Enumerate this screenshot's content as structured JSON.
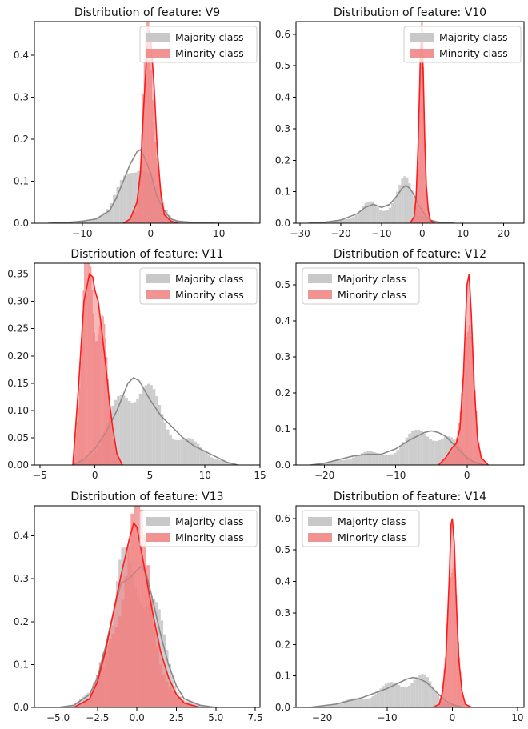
{
  "legend": {
    "majority_label": "Majority class",
    "minority_label": "Minority class"
  },
  "colors": {
    "majority_hist": "#c8c8c8",
    "majority_kde": "#888888",
    "minority_hist": "#f08080",
    "minority_kde": "#ff1a1a"
  },
  "chart_data": [
    {
      "type": "area",
      "title": "Distribution of feature: V9",
      "xlim": [
        -17,
        16
      ],
      "ylim": [
        0,
        0.48
      ],
      "xticks": [
        -10,
        0,
        10
      ],
      "yticks": [
        0.0,
        0.1,
        0.2,
        0.3,
        0.4
      ],
      "x_tick_labels": [
        "−10",
        "0",
        "10"
      ],
      "y_tick_labels": [
        "0.0",
        "0.1",
        "0.2",
        "0.3",
        "0.4"
      ],
      "series": [
        {
          "name": "Majority class",
          "x": [
            -15,
            -12,
            -10,
            -8,
            -6,
            -5,
            -4,
            -3,
            -2,
            -1.5,
            -1,
            0,
            1,
            2,
            3,
            4,
            6,
            8,
            10,
            15
          ],
          "y": [
            0,
            0.002,
            0.005,
            0.01,
            0.03,
            0.06,
            0.1,
            0.14,
            0.17,
            0.175,
            0.16,
            0.12,
            0.06,
            0.03,
            0.01,
            0.005,
            0.002,
            0.001,
            0,
            0
          ]
        },
        {
          "name": "Minority class",
          "x": [
            -4,
            -3,
            -2,
            -1.5,
            -1,
            -0.5,
            -0.2,
            0,
            0.5,
            1,
            1.5,
            2,
            3,
            4
          ],
          "y": [
            0,
            0.01,
            0.05,
            0.12,
            0.28,
            0.42,
            0.46,
            0.44,
            0.33,
            0.17,
            0.07,
            0.02,
            0.005,
            0
          ]
        }
      ]
    },
    {
      "type": "area",
      "title": "Distribution of feature: V10",
      "xlim": [
        -31,
        25
      ],
      "ylim": [
        0,
        0.64
      ],
      "xticks": [
        -30,
        -20,
        -10,
        0,
        10,
        20
      ],
      "yticks": [
        0.0,
        0.1,
        0.2,
        0.3,
        0.4,
        0.5,
        0.6
      ],
      "x_tick_labels": [
        "−30",
        "−20",
        "−10",
        "0",
        "10",
        "20"
      ],
      "y_tick_labels": [
        "0.0",
        "0.1",
        "0.2",
        "0.3",
        "0.4",
        "0.5",
        "0.6"
      ],
      "series": [
        {
          "name": "Majority class",
          "x": [
            -28,
            -24,
            -20,
            -16,
            -14,
            -12,
            -10,
            -8,
            -6,
            -5,
            -4,
            -3,
            -2,
            -1,
            0,
            1,
            2,
            4,
            8
          ],
          "y": [
            0,
            0.003,
            0.01,
            0.03,
            0.05,
            0.06,
            0.05,
            0.06,
            0.09,
            0.11,
            0.12,
            0.11,
            0.09,
            0.06,
            0.04,
            0.02,
            0.01,
            0.003,
            0
          ]
        },
        {
          "name": "Minority class",
          "x": [
            -3,
            -2,
            -1.5,
            -1,
            -0.5,
            -0.2,
            0,
            0.3,
            0.6,
            1,
            1.5,
            2,
            3
          ],
          "y": [
            0,
            0.02,
            0.08,
            0.25,
            0.5,
            0.6,
            0.58,
            0.45,
            0.28,
            0.12,
            0.04,
            0.01,
            0
          ]
        }
      ]
    },
    {
      "type": "area",
      "title": "Distribution of feature: V11",
      "xlim": [
        -5.5,
        15
      ],
      "ylim": [
        0,
        0.37
      ],
      "xticks": [
        -5,
        0,
        5,
        10,
        15
      ],
      "yticks": [
        0.0,
        0.05,
        0.1,
        0.15,
        0.2,
        0.25,
        0.3,
        0.35
      ],
      "x_tick_labels": [
        "−5",
        "0",
        "5",
        "10",
        "15"
      ],
      "y_tick_labels": [
        "0.00",
        "0.05",
        "0.10",
        "0.15",
        "0.20",
        "0.25",
        "0.30",
        "0.35"
      ],
      "series": [
        {
          "name": "Majority class",
          "x": [
            -2,
            -1,
            0,
            1,
            2,
            3,
            3.5,
            4,
            5,
            6,
            7,
            8,
            9,
            10,
            11,
            12,
            13
          ],
          "y": [
            0,
            0.01,
            0.03,
            0.06,
            0.1,
            0.15,
            0.16,
            0.155,
            0.12,
            0.09,
            0.07,
            0.05,
            0.035,
            0.025,
            0.015,
            0.005,
            0
          ]
        },
        {
          "name": "Minority class",
          "x": [
            -2,
            -1.5,
            -1,
            -0.5,
            -0.2,
            0,
            0.3,
            0.6,
            1,
            1.3,
            1.6,
            2,
            2.5
          ],
          "y": [
            0,
            0.14,
            0.3,
            0.35,
            0.345,
            0.32,
            0.3,
            0.25,
            0.18,
            0.12,
            0.07,
            0.02,
            0
          ]
        }
      ]
    },
    {
      "type": "area",
      "title": "Distribution of feature: V12",
      "xlim": [
        -24,
        8
      ],
      "ylim": [
        0,
        0.56
      ],
      "xticks": [
        -20,
        -10,
        0
      ],
      "yticks": [
        0.0,
        0.1,
        0.2,
        0.3,
        0.4,
        0.5
      ],
      "x_tick_labels": [
        "−20",
        "−10",
        "0"
      ],
      "y_tick_labels": [
        "0.0",
        "0.1",
        "0.2",
        "0.3",
        "0.4",
        "0.5"
      ],
      "series": [
        {
          "name": "Majority class",
          "x": [
            -22,
            -20,
            -18,
            -16,
            -14,
            -12,
            -10,
            -8,
            -6,
            -5,
            -4,
            -3,
            -2,
            -1,
            0,
            1,
            2,
            3
          ],
          "y": [
            0,
            0.005,
            0.015,
            0.025,
            0.03,
            0.03,
            0.045,
            0.07,
            0.09,
            0.095,
            0.09,
            0.08,
            0.06,
            0.04,
            0.02,
            0.008,
            0.002,
            0
          ]
        },
        {
          "name": "Minority class",
          "x": [
            -4,
            -3,
            -2,
            -1.5,
            -1,
            -0.5,
            0,
            0.3,
            0.6,
            1,
            1.5,
            2,
            3
          ],
          "y": [
            0,
            0.02,
            0.05,
            0.06,
            0.1,
            0.25,
            0.5,
            0.53,
            0.42,
            0.22,
            0.07,
            0.02,
            0
          ]
        }
      ]
    },
    {
      "type": "area",
      "title": "Distribution of feature: V13",
      "xlim": [
        -6.5,
        7.8
      ],
      "ylim": [
        0,
        0.47
      ],
      "xticks": [
        -5,
        -2.5,
        0,
        2.5,
        5,
        7.5
      ],
      "yticks": [
        0.0,
        0.1,
        0.2,
        0.3,
        0.4
      ],
      "x_tick_labels": [
        "−5.0",
        "−2.5",
        "0.0",
        "2.5",
        "5.0",
        "7.5"
      ],
      "y_tick_labels": [
        "0.0",
        "0.1",
        "0.2",
        "0.3",
        "0.4"
      ],
      "series": [
        {
          "name": "Majority class",
          "x": [
            -5,
            -4,
            -3,
            -2.5,
            -2,
            -1.5,
            -1,
            -0.5,
            0,
            0.3,
            0.6,
            1,
            1.5,
            2,
            2.5,
            3,
            4,
            5
          ],
          "y": [
            0,
            0.005,
            0.03,
            0.07,
            0.14,
            0.22,
            0.29,
            0.3,
            0.32,
            0.33,
            0.31,
            0.25,
            0.17,
            0.1,
            0.05,
            0.02,
            0.005,
            0
          ]
        },
        {
          "name": "Minority class",
          "x": [
            -4,
            -3,
            -2.5,
            -2,
            -1.5,
            -1,
            -0.5,
            -0.2,
            0,
            0.3,
            0.6,
            1,
            1.5,
            2,
            2.5,
            3,
            4
          ],
          "y": [
            0,
            0.02,
            0.06,
            0.13,
            0.22,
            0.31,
            0.39,
            0.43,
            0.42,
            0.36,
            0.3,
            0.22,
            0.13,
            0.07,
            0.03,
            0.01,
            0
          ]
        }
      ]
    },
    {
      "type": "area",
      "title": "Distribution of feature: V14",
      "xlim": [
        -24,
        11
      ],
      "ylim": [
        0,
        0.64
      ],
      "xticks": [
        -20,
        -10,
        0,
        10
      ],
      "yticks": [
        0.0,
        0.1,
        0.2,
        0.3,
        0.4,
        0.5,
        0.6
      ],
      "x_tick_labels": [
        "−20",
        "−10",
        "0",
        "10"
      ],
      "y_tick_labels": [
        "0.0",
        "0.1",
        "0.2",
        "0.3",
        "0.4",
        "0.5",
        "0.6"
      ],
      "series": [
        {
          "name": "Majority class",
          "x": [
            -22,
            -20,
            -18,
            -16,
            -14,
            -12,
            -10,
            -8,
            -7,
            -6,
            -5,
            -4,
            -3,
            -2,
            -1,
            0,
            1,
            2
          ],
          "y": [
            0,
            0.005,
            0.01,
            0.02,
            0.03,
            0.045,
            0.06,
            0.08,
            0.09,
            0.095,
            0.09,
            0.08,
            0.06,
            0.04,
            0.02,
            0.01,
            0.003,
            0
          ]
        },
        {
          "name": "Minority class",
          "x": [
            -3,
            -2,
            -1.5,
            -1,
            -0.5,
            -0.2,
            0,
            0.3,
            0.6,
            1,
            1.5,
            2,
            3
          ],
          "y": [
            0,
            0.01,
            0.05,
            0.15,
            0.4,
            0.58,
            0.6,
            0.52,
            0.34,
            0.15,
            0.05,
            0.01,
            0
          ]
        }
      ]
    }
  ]
}
